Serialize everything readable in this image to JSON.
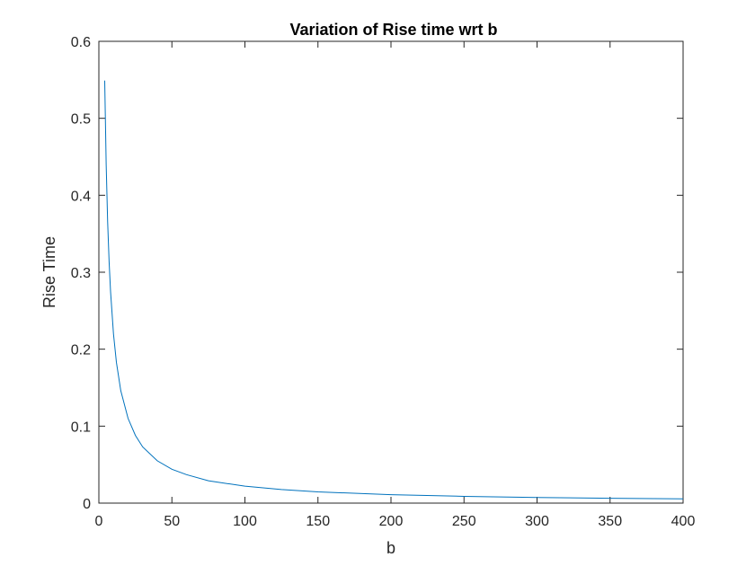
{
  "chart_data": {
    "type": "line",
    "title": "Variation of Rise time wrt b",
    "xlabel": "b",
    "ylabel": "Rise Time",
    "xlim": [
      0,
      400
    ],
    "ylim": [
      0,
      0.6
    ],
    "xticks": [
      0,
      50,
      100,
      150,
      200,
      250,
      300,
      350,
      400
    ],
    "yticks": [
      0,
      0.1,
      0.2,
      0.3,
      0.4,
      0.5,
      0.6
    ],
    "xtick_labels": [
      "0",
      "50",
      "100",
      "150",
      "200",
      "250",
      "300",
      "350",
      "400"
    ],
    "ytick_labels": [
      "0",
      "0.1",
      "0.2",
      "0.3",
      "0.4",
      "0.5",
      "0.6"
    ],
    "grid": false,
    "legend": "none",
    "series": [
      {
        "color": "#0072bd",
        "x": [
          4,
          5,
          6,
          7,
          8,
          10,
          12,
          15,
          20,
          25,
          30,
          40,
          50,
          60,
          75,
          100,
          125,
          150,
          200,
          250,
          300,
          350,
          400
        ],
        "y": [
          0.549,
          0.44,
          0.366,
          0.314,
          0.275,
          0.22,
          0.183,
          0.146,
          0.11,
          0.088,
          0.073,
          0.055,
          0.044,
          0.037,
          0.029,
          0.022,
          0.0176,
          0.0146,
          0.011,
          0.0088,
          0.0073,
          0.0063,
          0.0055
        ]
      }
    ]
  }
}
